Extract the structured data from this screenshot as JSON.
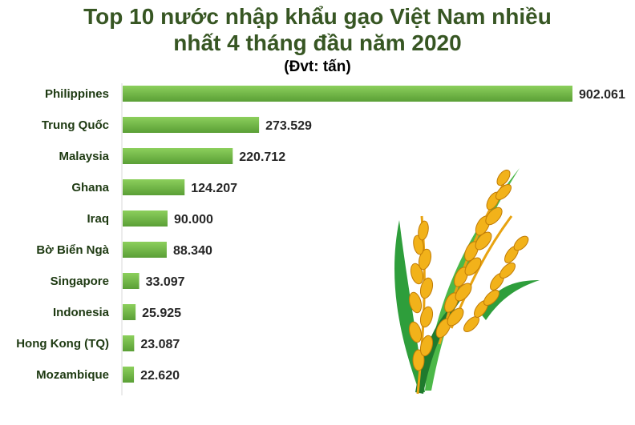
{
  "header": {
    "title_line1": "Top 10 nước nhập khẩu gạo Việt Nam nhiều",
    "title_line2": "nhất 4 tháng đầu năm 2020",
    "unit": "(Đvt: tấn)"
  },
  "colors": {
    "bar_top": "#8ccf5c",
    "bar_bottom": "#5a9f36",
    "title": "#375623",
    "label": "#1e3a12"
  },
  "decoration": {
    "icon": "rice-stalk-icon"
  },
  "chart_data": {
    "type": "bar",
    "orientation": "horizontal",
    "title": "Top 10 nước nhập khẩu gạo Việt Nam nhiều nhất 4 tháng đầu năm 2020",
    "subtitle": "(Đvt: tấn)",
    "categories": [
      "Philippines",
      "Trung Quốc",
      "Malaysia",
      "Ghana",
      "Iraq",
      "Bờ Biển Ngà",
      "Singapore",
      "Indonesia",
      "Hong Kong (TQ)",
      "Mozambique"
    ],
    "values": [
      902061,
      273529,
      220712,
      124207,
      90000,
      88340,
      33097,
      25925,
      23087,
      22620
    ],
    "value_labels": [
      "902.061",
      "273.529",
      "220.712",
      "124.207",
      "90.000",
      "88.340",
      "33.097",
      "25.925",
      "23.087",
      "22.620"
    ],
    "xlim": [
      0,
      902061
    ],
    "grid": false,
    "legend": "none"
  }
}
